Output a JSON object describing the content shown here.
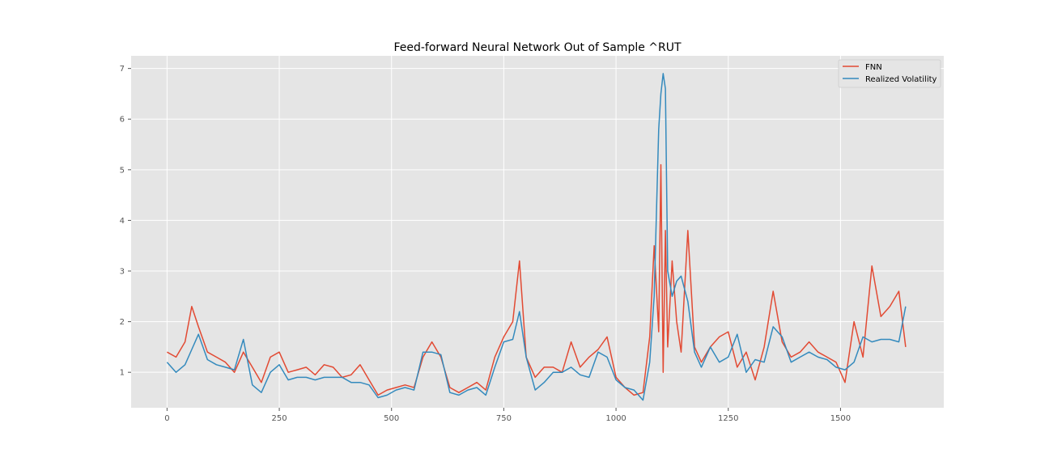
{
  "chart_data": {
    "type": "line",
    "title": "Feed-forward Neural Network Out of Sample ^RUT",
    "xlabel": "",
    "ylabel": "",
    "xlim": [
      -80,
      1730
    ],
    "ylim": [
      0.3,
      7.25
    ],
    "grid": true,
    "legend_position": "top-right",
    "x_ticks": [
      0,
      250,
      500,
      750,
      1000,
      1250,
      1500
    ],
    "x_tick_labels": [
      "0",
      "250",
      "500",
      "750",
      "1000",
      "1250",
      "1500"
    ],
    "y_ticks": [
      1,
      2,
      3,
      4,
      5,
      6,
      7
    ],
    "y_tick_labels": [
      "1",
      "2",
      "3",
      "4",
      "5",
      "6",
      "7"
    ],
    "x": [
      0,
      20,
      40,
      55,
      70,
      90,
      110,
      130,
      150,
      170,
      190,
      210,
      230,
      250,
      270,
      290,
      310,
      330,
      350,
      370,
      390,
      410,
      430,
      450,
      470,
      490,
      510,
      530,
      550,
      570,
      590,
      610,
      630,
      650,
      670,
      690,
      710,
      730,
      750,
      770,
      785,
      800,
      820,
      840,
      860,
      880,
      900,
      920,
      940,
      960,
      980,
      1000,
      1020,
      1040,
      1060,
      1075,
      1085,
      1095,
      1100,
      1105,
      1110,
      1115,
      1125,
      1135,
      1145,
      1160,
      1175,
      1190,
      1210,
      1230,
      1250,
      1270,
      1290,
      1310,
      1330,
      1350,
      1370,
      1390,
      1410,
      1430,
      1450,
      1470,
      1490,
      1510,
      1530,
      1550,
      1570,
      1590,
      1610,
      1630,
      1645
    ],
    "series": [
      {
        "name": "FNN",
        "color": "#E24A33",
        "values": [
          1.4,
          1.3,
          1.6,
          2.3,
          1.9,
          1.4,
          1.3,
          1.2,
          1.0,
          1.4,
          1.1,
          0.8,
          1.3,
          1.4,
          1.0,
          1.05,
          1.1,
          0.95,
          1.15,
          1.1,
          0.9,
          0.95,
          1.15,
          0.85,
          0.55,
          0.65,
          0.7,
          0.75,
          0.7,
          1.3,
          1.6,
          1.3,
          0.7,
          0.6,
          0.7,
          0.8,
          0.65,
          1.3,
          1.7,
          2.0,
          3.2,
          1.3,
          0.9,
          1.1,
          1.1,
          1.0,
          1.6,
          1.1,
          1.3,
          1.45,
          1.7,
          0.9,
          0.7,
          0.55,
          0.6,
          1.7,
          3.5,
          1.8,
          5.1,
          1.0,
          3.8,
          1.5,
          3.2,
          2.0,
          1.4,
          3.8,
          1.5,
          1.2,
          1.5,
          1.7,
          1.8,
          1.1,
          1.4,
          0.85,
          1.5,
          2.6,
          1.6,
          1.3,
          1.4,
          1.6,
          1.4,
          1.3,
          1.2,
          0.8,
          2.0,
          1.3,
          3.1,
          2.1,
          2.3,
          2.6,
          1.5
        ]
      },
      {
        "name": "Realized Volatility",
        "color": "#348ABD",
        "values": [
          1.2,
          1.0,
          1.15,
          1.45,
          1.75,
          1.25,
          1.15,
          1.1,
          1.05,
          1.65,
          0.75,
          0.6,
          1.0,
          1.15,
          0.85,
          0.9,
          0.9,
          0.85,
          0.9,
          0.9,
          0.9,
          0.8,
          0.8,
          0.75,
          0.5,
          0.55,
          0.65,
          0.7,
          0.65,
          1.4,
          1.4,
          1.35,
          0.6,
          0.55,
          0.65,
          0.7,
          0.55,
          1.1,
          1.6,
          1.65,
          2.2,
          1.3,
          0.65,
          0.8,
          1.0,
          1.0,
          1.1,
          0.95,
          0.9,
          1.4,
          1.3,
          0.85,
          0.7,
          0.65,
          0.45,
          1.2,
          2.5,
          5.8,
          6.5,
          6.9,
          6.6,
          3.0,
          2.5,
          2.8,
          2.9,
          2.4,
          1.4,
          1.1,
          1.5,
          1.2,
          1.3,
          1.75,
          1.0,
          1.25,
          1.2,
          1.9,
          1.7,
          1.2,
          1.3,
          1.4,
          1.3,
          1.25,
          1.1,
          1.05,
          1.2,
          1.7,
          1.6,
          1.65,
          1.65,
          1.6,
          2.3
        ]
      }
    ]
  }
}
